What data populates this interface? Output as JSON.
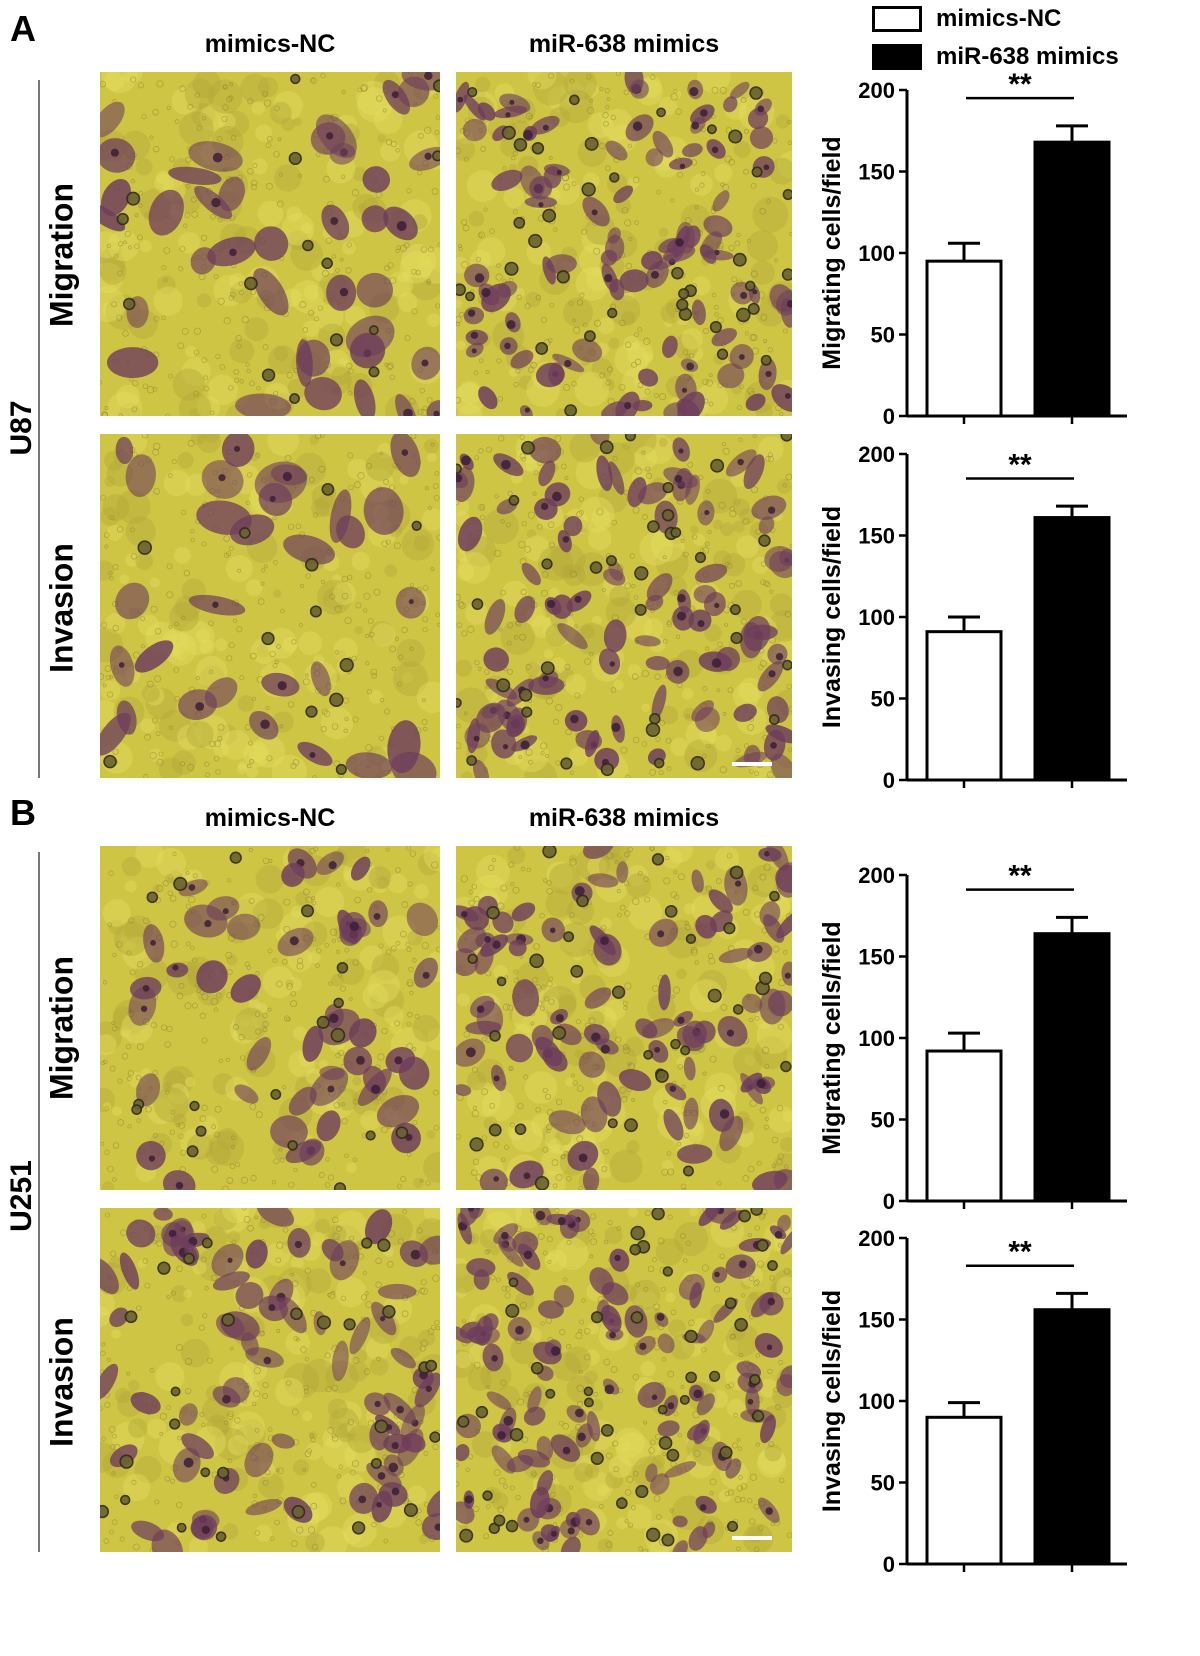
{
  "panels": [
    {
      "letter": "A",
      "cell_line": "U87",
      "col_headers": [
        "mimics-NC",
        "miR-638 mimics"
      ],
      "rows": [
        "Migration",
        "Invasion"
      ]
    },
    {
      "letter": "B",
      "cell_line": "U251",
      "col_headers": [
        "mimics-NC",
        "miR-638 mimics"
      ],
      "rows": [
        "Migration",
        "Invasion"
      ]
    }
  ],
  "legend": [
    {
      "label": "mimics-NC",
      "color": "#ffffff"
    },
    {
      "label": "miR-638 mimics",
      "color": "#000000"
    }
  ],
  "colors": {
    "micrograph_background": "#cfc545",
    "cell_stain": "#6e3d5c",
    "bar_control": "#ffffff",
    "bar_treatment": "#000000"
  },
  "chart_data": [
    {
      "type": "bar",
      "ylabel": "Migrating cells/field",
      "ylim": [
        0,
        200
      ],
      "yticks": [
        0,
        50,
        100,
        150,
        200
      ],
      "categories": [
        "mimics-NC",
        "miR-638 mimics"
      ],
      "values": [
        95,
        168
      ],
      "errors": [
        11,
        10
      ],
      "significance": "**"
    },
    {
      "type": "bar",
      "ylabel": "Invasing cells/field",
      "ylim": [
        0,
        200
      ],
      "yticks": [
        0,
        50,
        100,
        150,
        200
      ],
      "categories": [
        "mimics-NC",
        "miR-638 mimics"
      ],
      "values": [
        91,
        161
      ],
      "errors": [
        9,
        7
      ],
      "significance": "**"
    },
    {
      "type": "bar",
      "ylabel": "Migrating cells/field",
      "ylim": [
        0,
        200
      ],
      "yticks": [
        0,
        50,
        100,
        150,
        200
      ],
      "categories": [
        "mimics-NC",
        "miR-638 mimics"
      ],
      "values": [
        92,
        164
      ],
      "errors": [
        11,
        10
      ],
      "significance": "**"
    },
    {
      "type": "bar",
      "ylabel": "Invasing cells/field",
      "ylim": [
        0,
        200
      ],
      "yticks": [
        0,
        50,
        100,
        150,
        200
      ],
      "categories": [
        "mimics-NC",
        "miR-638 mimics"
      ],
      "values": [
        90,
        156
      ],
      "errors": [
        9,
        10
      ],
      "significance": "**"
    }
  ]
}
